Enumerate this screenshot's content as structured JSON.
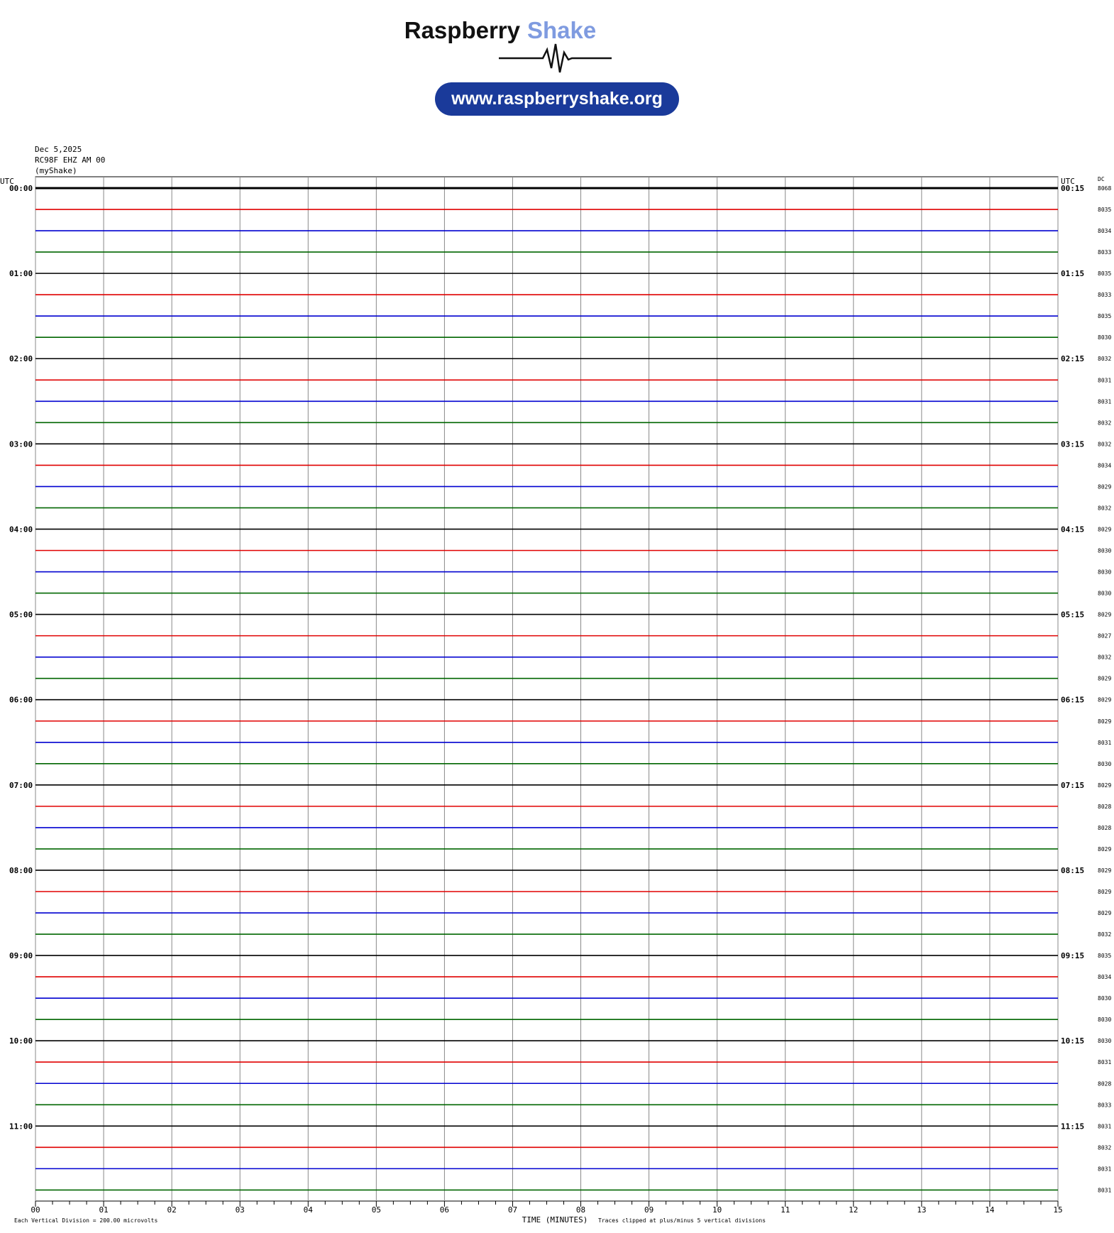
{
  "header": {
    "brand_1": "Raspberry",
    "brand_2": "Shake",
    "url": "www.raspberryshake.org"
  },
  "station": {
    "date": "Dec 5,2025",
    "channel": "RC98F EHZ AM 00",
    "network": "(myShake)"
  },
  "left_axis": {
    "label": "UTC",
    "hours": [
      "00:00",
      "01:00",
      "02:00",
      "03:00",
      "04:00",
      "05:00",
      "06:00",
      "07:00",
      "08:00",
      "09:00",
      "10:00",
      "11:00"
    ]
  },
  "right_axis": {
    "label": "UTC",
    "hours": [
      "00:15",
      "01:15",
      "02:15",
      "03:15",
      "04:15",
      "05:15",
      "06:15",
      "07:15",
      "08:15",
      "09:15",
      "10:15",
      "11:15"
    ]
  },
  "dc": {
    "label": "DC",
    "values": [
      8068,
      8035,
      8034,
      8033,
      8035,
      8033,
      8035,
      8030,
      8032,
      8031,
      8031,
      8032,
      8032,
      8034,
      8029,
      8032,
      8029,
      8030,
      8030,
      8030,
      8029,
      8027,
      8032,
      8029,
      8029,
      8029,
      8031,
      8030,
      8029,
      8028,
      8028,
      8029,
      8029,
      8029,
      8029,
      8032,
      8035,
      8034,
      8030,
      8030,
      8030,
      8031,
      8028,
      8033,
      8031,
      8032,
      8031,
      8031
    ]
  },
  "x_axis": {
    "ticks": [
      "00",
      "01",
      "02",
      "03",
      "04",
      "05",
      "06",
      "07",
      "08",
      "09",
      "10",
      "11",
      "12",
      "13",
      "14",
      "15"
    ],
    "label": "TIME (MINUTES)"
  },
  "footer": {
    "scale": "Each Vertical Division =  200.00 microvolts",
    "clip": "Traces clipped at plus/minus 5 vertical divisions"
  }
}
